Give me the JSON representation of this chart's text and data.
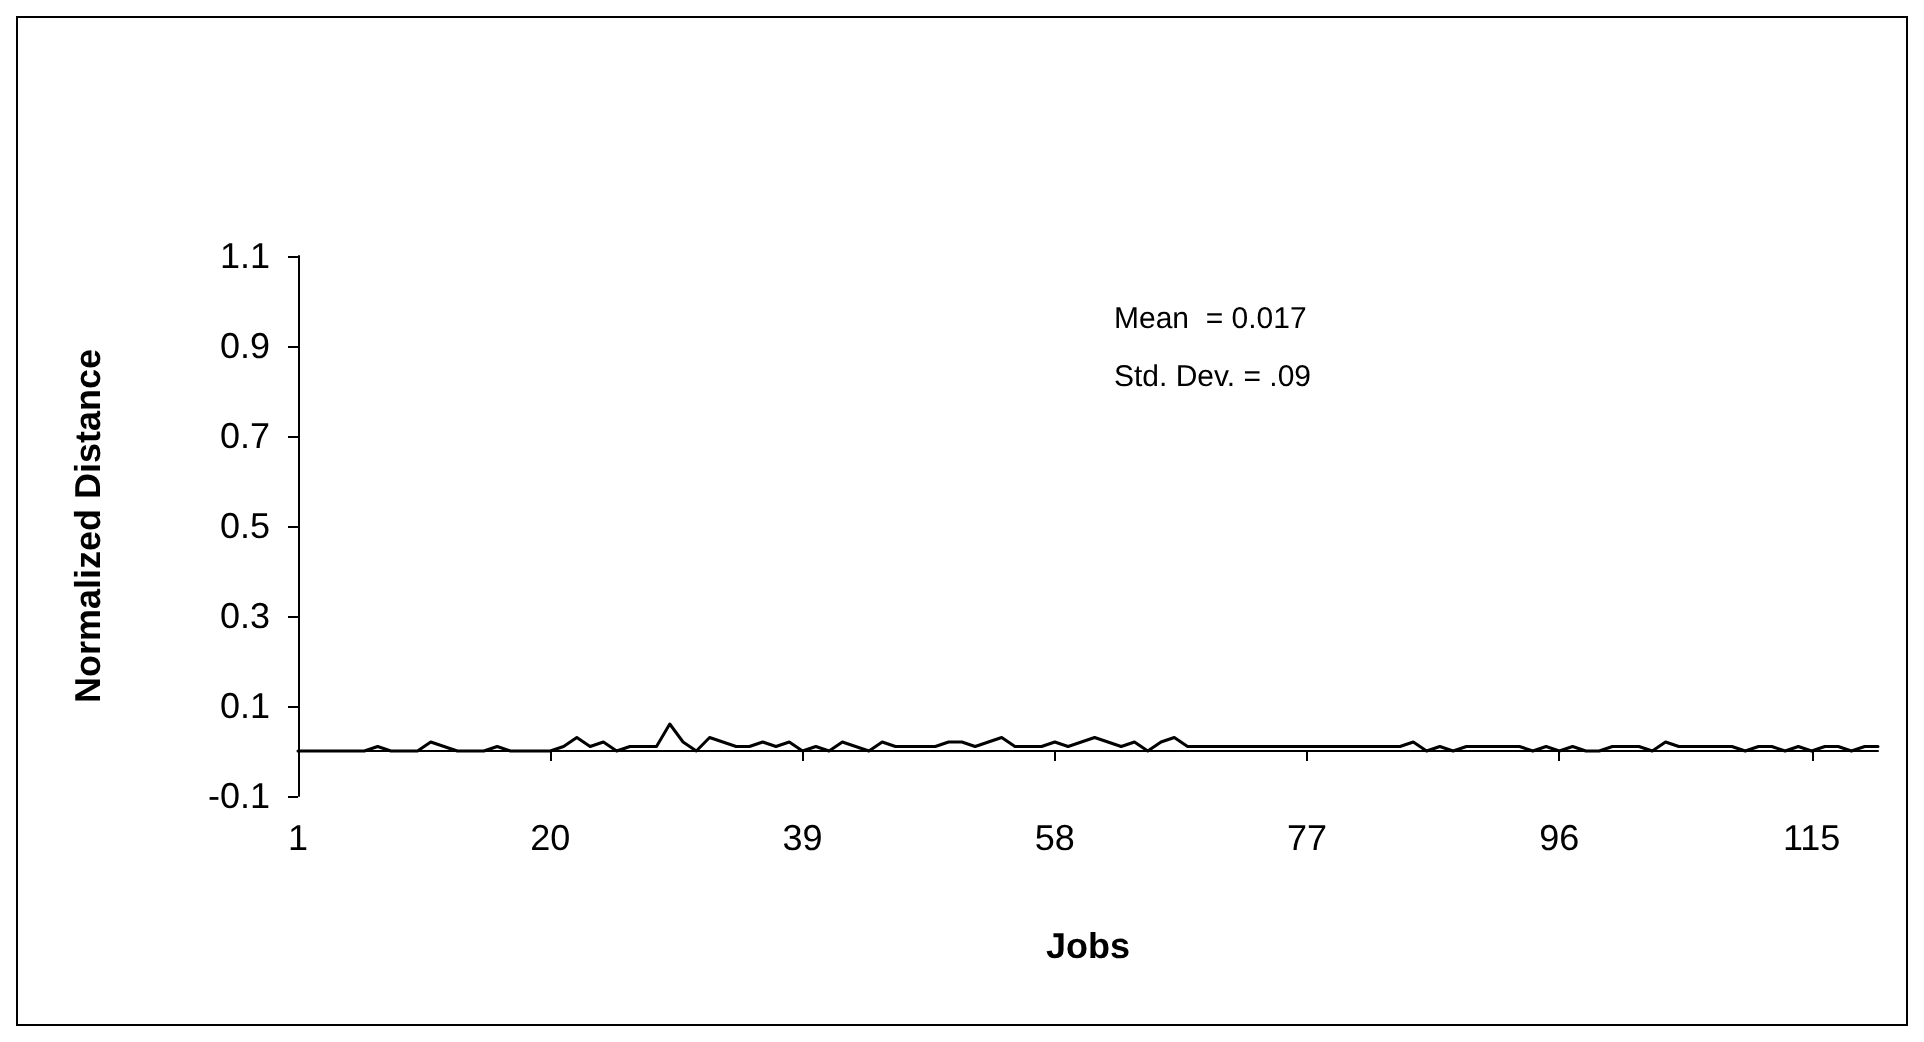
{
  "chart_data": {
    "type": "line",
    "xlabel": "Jobs",
    "ylabel": "Normalized Distance",
    "categories": [
      "1",
      null,
      null,
      null,
      null,
      null,
      null,
      null,
      null,
      null,
      null,
      null,
      null,
      null,
      null,
      null,
      null,
      null,
      null,
      "20",
      null,
      null,
      null,
      null,
      null,
      null,
      null,
      null,
      null,
      null,
      null,
      null,
      null,
      null,
      null,
      null,
      null,
      null,
      "39",
      null,
      null,
      null,
      null,
      null,
      null,
      null,
      null,
      null,
      null,
      null,
      null,
      null,
      null,
      null,
      null,
      null,
      null,
      "58",
      null,
      null,
      null,
      null,
      null,
      null,
      null,
      null,
      null,
      null,
      null,
      null,
      null,
      null,
      null,
      null,
      null,
      null,
      "77",
      null,
      null,
      null,
      null,
      null,
      null,
      null,
      null,
      null,
      null,
      null,
      null,
      null,
      null,
      null,
      null,
      null,
      null,
      "96",
      null,
      null,
      null,
      null,
      null,
      null,
      null,
      null,
      null,
      null,
      null,
      null,
      null,
      null,
      null,
      null,
      null,
      null,
      "115",
      null,
      null,
      null,
      null,
      null
    ],
    "series": [
      {
        "color": "#000000",
        "values": [
          0,
          0,
          0,
          0,
          0,
          0,
          0.01,
          0,
          0,
          0,
          0.02,
          0.01,
          0,
          0,
          0,
          0.01,
          0,
          0,
          0,
          0,
          0.01,
          0.03,
          0.01,
          0.02,
          0,
          0.01,
          0.01,
          0.01,
          0.06,
          0.02,
          0,
          0.03,
          0.02,
          0.01,
          0.01,
          0.02,
          0.01,
          0.02,
          0,
          0.01,
          0,
          0.02,
          0.01,
          0,
          0.02,
          0.01,
          0.01,
          0.01,
          0.01,
          0.02,
          0.02,
          0.01,
          0.02,
          0.03,
          0.01,
          0.01,
          0.01,
          0.02,
          0.01,
          0.02,
          0.03,
          0.02,
          0.01,
          0.02,
          0,
          0.02,
          0.03,
          0.01,
          0.01,
          0.01,
          0.01,
          0.01,
          0.01,
          0.01,
          0.01,
          0.01,
          0.01,
          0.01,
          0.01,
          0.01,
          0.01,
          0.01,
          0.01,
          0.01,
          0.02,
          0,
          0.01,
          0,
          0.01,
          0.01,
          0.01,
          0.01,
          0.01,
          0,
          0.01,
          0,
          0.01,
          0,
          0,
          0.01,
          0.01,
          0.01,
          0,
          0.02,
          0.01,
          0.01,
          0.01,
          0.01,
          0.01,
          0,
          0.01,
          0.01,
          0,
          0.01,
          0,
          0.01,
          0.01,
          0,
          0.01,
          0.01
        ]
      }
    ],
    "ylim": [
      -0.1,
      1.1
    ],
    "yticks": [
      -0.1,
      0.1,
      0.3,
      0.5,
      0.7,
      0.9,
      1.1
    ],
    "annotations": [
      "Mean  = 0.017",
      "Std. Dev. = .09"
    ],
    "grid": false,
    "marker": "none",
    "line_style": "solid"
  }
}
